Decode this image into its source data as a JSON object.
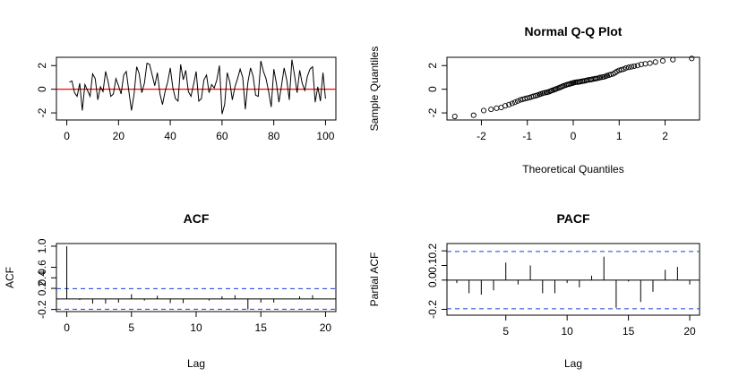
{
  "chart_data": [
    {
      "type": "line",
      "title": "",
      "xlabel": "",
      "ylabel": "",
      "xlim": [
        0,
        100
      ],
      "ylim": [
        -2.6,
        2.7
      ],
      "xticks": [
        "0",
        "20",
        "40",
        "60",
        "80",
        "100"
      ],
      "yticks": [
        "-2",
        "0",
        "2"
      ],
      "reference_line": {
        "y": 0,
        "color": "#ff0000"
      },
      "x": [
        1,
        2,
        3,
        4,
        5,
        6,
        7,
        8,
        9,
        10,
        11,
        12,
        13,
        14,
        15,
        16,
        17,
        18,
        19,
        20,
        21,
        22,
        23,
        24,
        25,
        26,
        27,
        28,
        29,
        30,
        31,
        32,
        33,
        34,
        35,
        36,
        37,
        38,
        39,
        40,
        41,
        42,
        43,
        44,
        45,
        46,
        47,
        48,
        49,
        50,
        51,
        52,
        53,
        54,
        55,
        56,
        57,
        58,
        59,
        60,
        61,
        62,
        63,
        64,
        65,
        66,
        67,
        68,
        69,
        70,
        71,
        72,
        73,
        74,
        75,
        76,
        77,
        78,
        79,
        80,
        81,
        82,
        83,
        84,
        85,
        86,
        87,
        88,
        89,
        90,
        91,
        92,
        93,
        94,
        95,
        96,
        97,
        98,
        99,
        100
      ],
      "values": [
        0.6,
        0.7,
        -0.3,
        -0.6,
        0.5,
        -1.8,
        0.4,
        -0.1,
        -0.6,
        1.3,
        0.9,
        -0.9,
        0.2,
        -0.2,
        1.5,
        0.6,
        -0.6,
        -0.4,
        0.9,
        0.3,
        -0.4,
        1.2,
        1.5,
        -0.2,
        -1.8,
        -0.4,
        1.9,
        1.3,
        -0.3,
        0.5,
        2.2,
        2.1,
        1.2,
        0.3,
        1.4,
        -0.4,
        -1.3,
        -0.2,
        0.6,
        1.8,
        0.1,
        -0.8,
        -1.0,
        2.1,
        0.8,
        1.6,
        -0.2,
        -0.6,
        0.4,
        1.5,
        -1.0,
        -0.8,
        0.8,
        1.2,
        -0.3,
        0.4,
        0.1,
        0.8,
        2.0,
        -2.1,
        -1.3,
        1.4,
        0.6,
        -0.9,
        0.2,
        0.9,
        1.7,
        1.0,
        -1.7,
        0.6,
        1.8,
        1.1,
        -0.5,
        -0.6,
        2.4,
        1.5,
        0.9,
        -0.2,
        -1.5,
        1.7,
        0.5,
        -1.1,
        0.3,
        1.8,
        0.8,
        -0.9,
        2.5,
        1.2,
        -0.3,
        1.6,
        0.5,
        -0.1,
        1.1,
        1.7,
        1.9,
        -1.1,
        0.2,
        -1.0,
        1.4,
        -0.8
      ]
    },
    {
      "type": "scatter",
      "title": "Normal Q-Q Plot",
      "xlabel": "Theoretical Quantiles",
      "ylabel": "Sample Quantiles",
      "xlim": [
        -2.75,
        2.75
      ],
      "ylim": [
        -2.6,
        2.7
      ],
      "xticks": [
        "-2",
        "-1",
        "0",
        "1",
        "2"
      ],
      "yticks": [
        "-2",
        "0",
        "2"
      ],
      "x": [
        -2.58,
        -2.17,
        -1.95,
        -1.79,
        -1.67,
        -1.57,
        -1.48,
        -1.4,
        -1.33,
        -1.27,
        -1.21,
        -1.15,
        -1.1,
        -1.05,
        -1.0,
        -0.95,
        -0.91,
        -0.87,
        -0.82,
        -0.78,
        -0.74,
        -0.71,
        -0.67,
        -0.63,
        -0.59,
        -0.56,
        -0.52,
        -0.49,
        -0.46,
        -0.42,
        -0.39,
        -0.36,
        -0.32,
        -0.29,
        -0.26,
        -0.23,
        -0.2,
        -0.16,
        -0.13,
        -0.1,
        -0.07,
        -0.04,
        -0.01,
        0.01,
        0.04,
        0.07,
        0.1,
        0.13,
        0.16,
        0.2,
        0.23,
        0.26,
        0.29,
        0.32,
        0.36,
        0.39,
        0.42,
        0.46,
        0.49,
        0.52,
        0.56,
        0.59,
        0.63,
        0.67,
        0.71,
        0.74,
        0.78,
        0.82,
        0.87,
        0.91,
        0.95,
        1.0,
        1.05,
        1.1,
        1.15,
        1.21,
        1.27,
        1.33,
        1.4,
        1.48,
        1.57,
        1.67,
        1.79,
        1.95,
        2.17,
        2.58
      ],
      "values": [
        -2.3,
        -2.2,
        -1.8,
        -1.7,
        -1.6,
        -1.55,
        -1.4,
        -1.3,
        -1.2,
        -1.1,
        -1.0,
        -0.9,
        -0.85,
        -0.8,
        -0.75,
        -0.7,
        -0.65,
        -0.6,
        -0.55,
        -0.5,
        -0.45,
        -0.4,
        -0.35,
        -0.3,
        -0.28,
        -0.25,
        -0.2,
        -0.15,
        -0.1,
        -0.05,
        0.0,
        0.05,
        0.1,
        0.15,
        0.2,
        0.25,
        0.3,
        0.35,
        0.4,
        0.42,
        0.45,
        0.5,
        0.52,
        0.55,
        0.58,
        0.6,
        0.6,
        0.62,
        0.65,
        0.68,
        0.7,
        0.72,
        0.75,
        0.78,
        0.8,
        0.82,
        0.85,
        0.88,
        0.9,
        0.92,
        0.95,
        1.0,
        1.02,
        1.05,
        1.1,
        1.15,
        1.2,
        1.25,
        1.3,
        1.4,
        1.5,
        1.6,
        1.65,
        1.7,
        1.8,
        1.85,
        1.9,
        1.95,
        2.0,
        2.1,
        2.15,
        2.2,
        2.3,
        2.4,
        2.5,
        2.6
      ]
    },
    {
      "type": "bar",
      "title": "ACF",
      "xlabel": "Lag",
      "ylabel": "ACF",
      "xlim": [
        -0.8,
        20.8
      ],
      "ylim": [
        -0.24,
        1.05
      ],
      "xticks": [
        "0",
        "5",
        "10",
        "15",
        "20"
      ],
      "yticks": [
        "-0.2",
        "0.2",
        "0.4",
        "0.6",
        "1.0"
      ],
      "confidence_bounds": [
        0.196,
        -0.196
      ],
      "lags": [
        0,
        1,
        2,
        3,
        4,
        5,
        6,
        7,
        8,
        9,
        10,
        11,
        12,
        13,
        14,
        15,
        16,
        17,
        18,
        19,
        20
      ],
      "values": [
        1.0,
        -0.02,
        -0.09,
        -0.09,
        -0.07,
        0.09,
        -0.03,
        0.06,
        -0.08,
        -0.08,
        0.0,
        -0.03,
        0.05,
        0.07,
        -0.2,
        -0.07,
        -0.07,
        0.0,
        0.05,
        0.07,
        0.0
      ]
    },
    {
      "type": "bar",
      "title": "PACF",
      "xlabel": "Lag",
      "ylabel": "Partial ACF",
      "xlim": [
        0.2,
        20.8
      ],
      "ylim": [
        -0.24,
        0.25
      ],
      "xticks": [
        "5",
        "10",
        "15",
        "20"
      ],
      "yticks": [
        "-0.2",
        "0.0",
        "0.1",
        "0.2"
      ],
      "confidence_bounds": [
        0.196,
        -0.196
      ],
      "lags": [
        1,
        2,
        3,
        4,
        5,
        6,
        7,
        8,
        9,
        10,
        11,
        12,
        13,
        14,
        15,
        16,
        17,
        18,
        19,
        20
      ],
      "values": [
        -0.02,
        -0.09,
        -0.1,
        -0.07,
        0.12,
        -0.03,
        0.1,
        -0.09,
        -0.09,
        -0.02,
        -0.05,
        0.03,
        0.16,
        -0.19,
        -0.01,
        -0.15,
        -0.08,
        0.07,
        0.09,
        -0.03
      ]
    }
  ]
}
